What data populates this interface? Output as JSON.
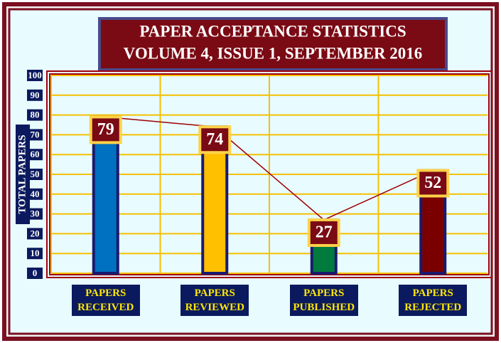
{
  "chart_data": {
    "type": "bar",
    "title": "PAPER ACCEPTANCE STATISTICS",
    "subtitle": "VOLUME 4, ISSUE 1, SEPTEMBER 2016",
    "y_label": "TOTAL PAPERS",
    "categories": [
      "PAPERS RECEIVED",
      "PAPERS REVIEWED",
      "PAPERS PUBLISHED",
      "PAPERS REJECTED"
    ],
    "values": [
      79,
      74,
      27,
      52
    ],
    "colors": [
      "#0070c0",
      "#ffc000",
      "#007a3d",
      "#7a0000"
    ],
    "line_color": "#a00000",
    "ylim": [
      0,
      100
    ],
    "yticks": [
      0,
      10,
      20,
      30,
      40,
      50,
      60,
      70,
      80,
      90,
      100
    ],
    "grid": true
  }
}
